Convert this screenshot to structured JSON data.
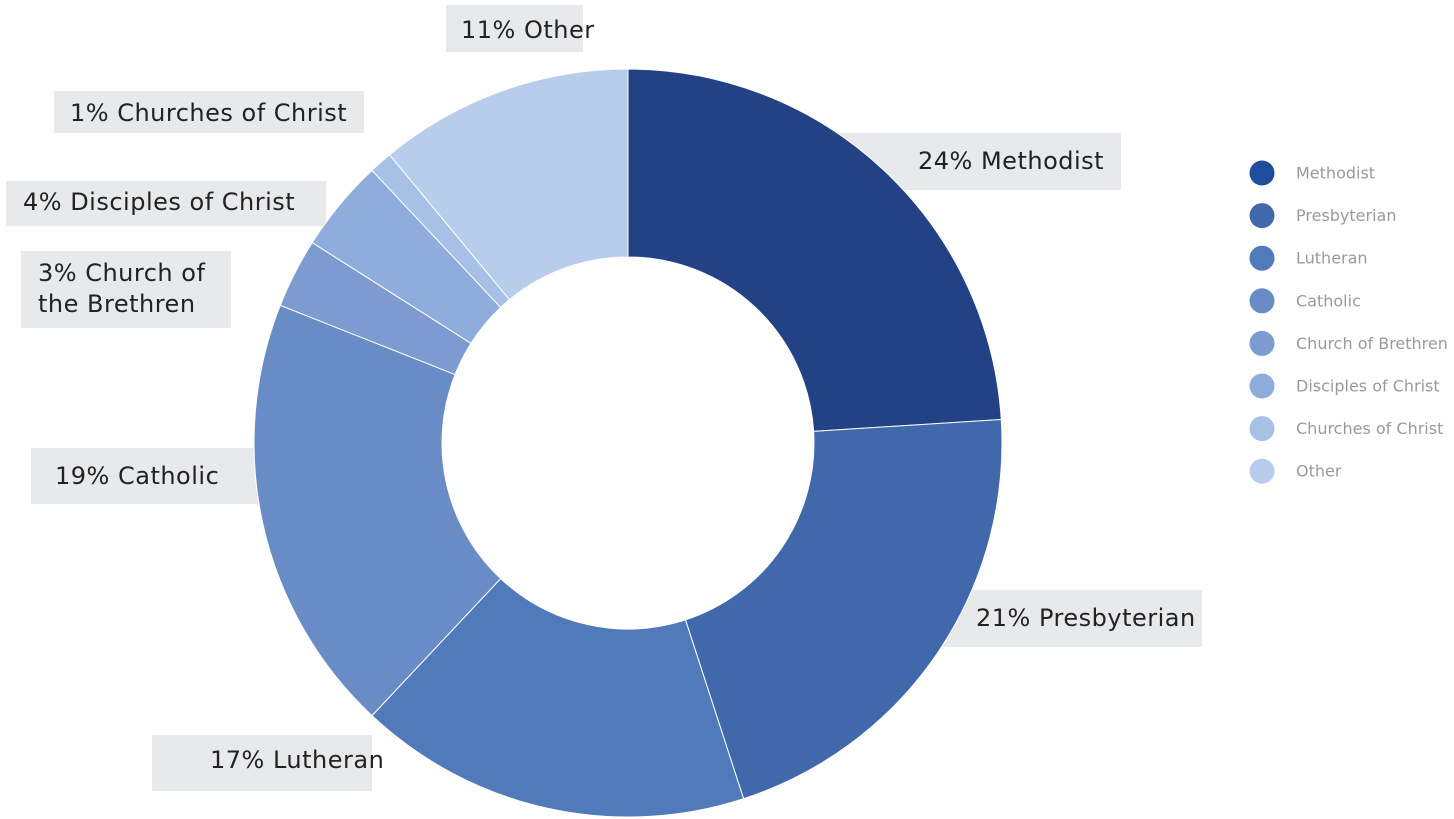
{
  "chart_data": {
    "type": "pie",
    "variant": "donut",
    "title": "",
    "categories": [
      "Methodist",
      "Presbyterian",
      "Lutheran",
      "Catholic",
      "Church of the Brethren",
      "Disciples of Christ",
      "Churches of Christ",
      "Other"
    ],
    "values": [
      24,
      21,
      17,
      19,
      3,
      4,
      1,
      11
    ],
    "slice_labels": [
      [
        "24% Methodist"
      ],
      [
        "21% Presbyterian"
      ],
      [
        "17% Lutheran"
      ],
      [
        "19% Catholic"
      ],
      [
        "3% Church of",
        "the Brethren"
      ],
      [
        "4% Disciples of Christ"
      ],
      [
        "1% Churches of Christ"
      ],
      [
        "11% Other"
      ]
    ],
    "colors": [
      "#234185",
      "#4068aa",
      "#507aba",
      "#6a8cc6",
      "#7d9bd0",
      "#8eacdc",
      "#a6c0e6",
      "#b8cdeb"
    ],
    "legend": {
      "placement": "right",
      "entries": [
        "Methodist",
        "Presbyterian",
        "Lutheran",
        "Catholic",
        "Church of Brethren",
        "Disciples of Christ",
        "Churches of Christ",
        "Other"
      ],
      "colors": [
        "#1f4c9c",
        "#4068aa",
        "#507aba",
        "#6a8cc6",
        "#7d9bd0",
        "#8eacdc",
        "#a6c0e6",
        "#b8cdeb"
      ]
    },
    "label_background": "#e8e9eb",
    "start_angle_deg": 0,
    "direction": "clockwise"
  }
}
